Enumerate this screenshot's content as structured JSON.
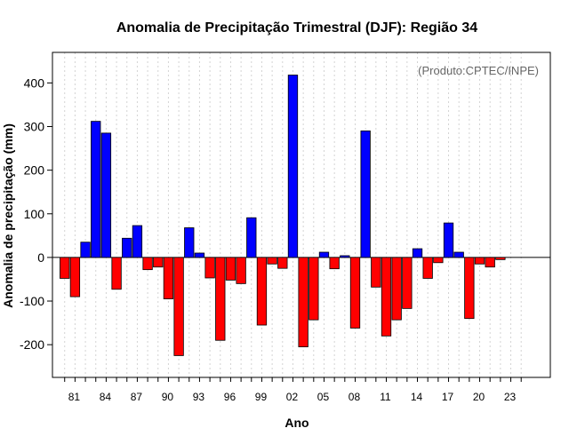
{
  "chart_data": {
    "type": "bar",
    "title": "Anomalia de Precipitação Trimestral (DJF): Região 34",
    "annotation": "(Produto:CPTEC/INPE)",
    "xlabel": "Ano",
    "ylabel": "Anomalia de precipitação (mm)",
    "ylim": [
      -275,
      470
    ],
    "yticks": [
      -200,
      -100,
      0,
      100,
      200,
      300,
      400
    ],
    "ytick_labels": [
      "-200",
      "-100",
      "0",
      "100",
      "200",
      "300",
      "400"
    ],
    "x_tick_labels": [
      "81",
      "84",
      "87",
      "90",
      "93",
      "96",
      "99",
      "02",
      "05",
      "08",
      "11",
      "14",
      "17",
      "20",
      "23"
    ],
    "x_tick_label_indices": [
      1,
      4,
      7,
      10,
      13,
      16,
      19,
      22,
      25,
      28,
      31,
      34,
      37,
      40,
      43
    ],
    "grid": true,
    "colors": {
      "positive": "#0000ff",
      "negative": "#ff0000",
      "edge": "#000000",
      "grid": "#d3d3d3",
      "annotation": "#666666"
    },
    "categories": [
      "1980",
      "1981",
      "1982",
      "1983",
      "1984",
      "1985",
      "1986",
      "1987",
      "1988",
      "1989",
      "1990",
      "1991",
      "1992",
      "1993",
      "1994",
      "1995",
      "1996",
      "1997",
      "1998",
      "1999",
      "2000",
      "2001",
      "2002",
      "2003",
      "2004",
      "2005",
      "2006",
      "2007",
      "2008",
      "2009",
      "2010",
      "2011",
      "2012",
      "2013",
      "2014",
      "2015",
      "2016",
      "2017",
      "2018",
      "2019",
      "2020",
      "2021",
      "2022",
      "2023",
      "2024"
    ],
    "values": [
      -48,
      -90,
      35,
      312,
      285,
      -73,
      44,
      73,
      -28,
      -22,
      -95,
      -225,
      68,
      10,
      -47,
      -190,
      -52,
      -60,
      91,
      -155,
      -15,
      -25,
      418,
      -205,
      -143,
      12,
      -26,
      4,
      -162,
      290,
      -68,
      -180,
      -143,
      -117,
      20,
      -48,
      -12,
      79,
      12,
      -140,
      -15,
      -22,
      -5,
      0,
      0
    ]
  }
}
